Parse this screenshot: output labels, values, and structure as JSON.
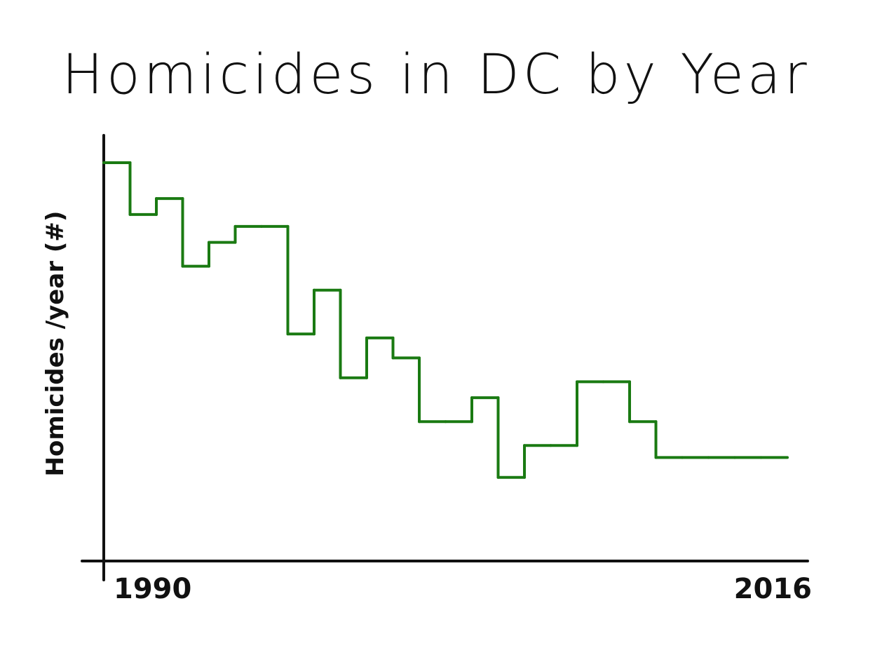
{
  "chart_data": {
    "type": "line",
    "step": true,
    "title": "Homicides in DC by Year",
    "xlabel": "",
    "ylabel": "Homicides /year (#)",
    "x_tick_labels": [
      "1990",
      "2016"
    ],
    "xlim": [
      1990,
      2016
    ],
    "ylim": [
      0,
      100
    ],
    "grid": false,
    "legend": "none",
    "colors": {
      "line": "#1a7a12",
      "axis": "#111111",
      "text": "#111111"
    },
    "x": [
      1990,
      1991,
      1992,
      1993,
      1994,
      1995,
      1996,
      1997,
      1998,
      1999,
      2000,
      2001,
      2002,
      2003,
      2004,
      2005,
      2006,
      2007,
      2008,
      2009,
      2010,
      2011,
      2012,
      2013,
      2014,
      2015
    ],
    "values": [
      100,
      87,
      91,
      74,
      80,
      84,
      84,
      57,
      68,
      46,
      56,
      51,
      35,
      35,
      41,
      21,
      29,
      29,
      45,
      45,
      35,
      26,
      26,
      26,
      26,
      26
    ]
  }
}
